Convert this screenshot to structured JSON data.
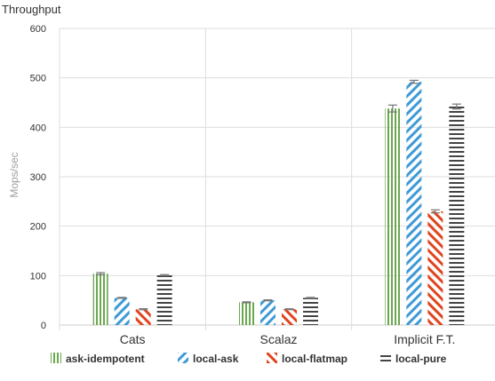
{
  "chart_data": {
    "type": "bar",
    "title": "Throughput",
    "ylabel": "Mops/sec",
    "xlabel": "",
    "ylim": [
      0,
      600
    ],
    "yticks": [
      0,
      100,
      200,
      300,
      400,
      500,
      600
    ],
    "grid": true,
    "legend_position": "bottom",
    "categories": [
      "Cats",
      "Scalaz",
      "Implicit F.T."
    ],
    "series": [
      {
        "name": "ask-idempotent",
        "pattern": "vertical",
        "color": "#6aa84f",
        "values": [
          104,
          46,
          438
        ],
        "errors": [
          2,
          1,
          7
        ]
      },
      {
        "name": "local-ask",
        "pattern": "diagonal-forward",
        "color": "#3d9ad6",
        "values": [
          55,
          50,
          492
        ],
        "errors": [
          1,
          1,
          3
        ]
      },
      {
        "name": "local-flatmap",
        "pattern": "diagonal-backward",
        "color": "#e0441d",
        "values": [
          32,
          32,
          230
        ],
        "errors": [
          1,
          1,
          3
        ]
      },
      {
        "name": "local-pure",
        "pattern": "horizontal",
        "color": "#444444",
        "values": [
          101,
          55,
          442
        ],
        "errors": [
          1,
          1,
          5
        ]
      }
    ]
  }
}
